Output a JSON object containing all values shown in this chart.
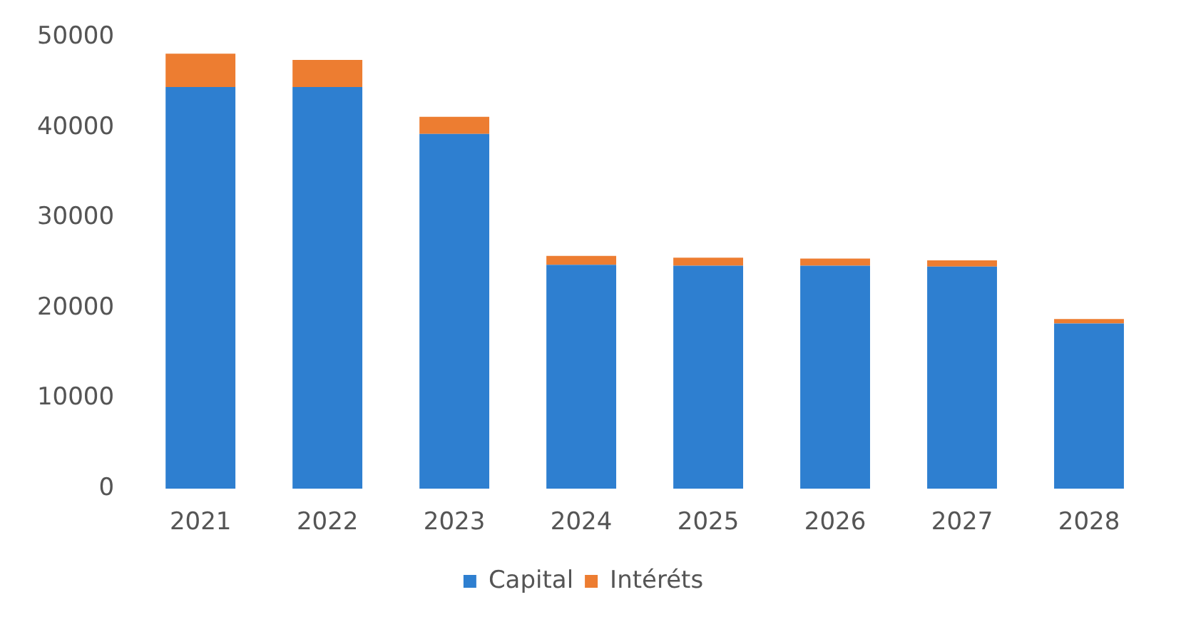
{
  "chart_data": {
    "type": "bar",
    "stacked": true,
    "categories": [
      "2021",
      "2022",
      "2023",
      "2024",
      "2025",
      "2026",
      "2027",
      "2028"
    ],
    "series": [
      {
        "name": "Capital",
        "color": "#2e7fd0",
        "values": [
          44500,
          44500,
          39300,
          24800,
          24700,
          24700,
          24600,
          18300
        ]
      },
      {
        "name": "Intéréts",
        "color": "#ed7d31",
        "values": [
          3700,
          3000,
          1900,
          1000,
          900,
          800,
          700,
          500
        ]
      }
    ],
    "ylim": [
      0,
      50000
    ],
    "yticks": [
      0,
      10000,
      20000,
      30000,
      40000,
      50000
    ],
    "grid": false,
    "legend": "bottom"
  }
}
